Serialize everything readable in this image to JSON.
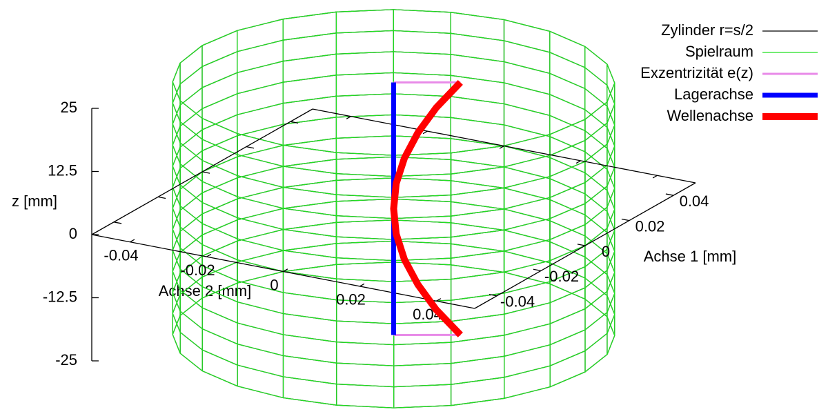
{
  "chart_data": {
    "type": "line3d",
    "xlabel": "Achse 1 [mm]",
    "ylabel": "Achse 2 [mm]",
    "zlabel": "z [mm]",
    "xlim": [
      -0.05,
      0.05
    ],
    "ylim": [
      -0.05,
      0.05
    ],
    "zlim": [
      -25,
      25
    ],
    "xticks": [
      -0.04,
      -0.02,
      0,
      0.02,
      0.04
    ],
    "yticks": [
      -0.04,
      -0.02,
      0,
      0.02,
      0.04
    ],
    "zticks": [
      -25,
      -12.5,
      0,
      12.5,
      25
    ],
    "legend": "top-right",
    "series": [
      {
        "name": "Zylinder r=s/2",
        "color": "#000000",
        "kind": "cylinder",
        "radius": 0.05,
        "zrange": [
          -25,
          25
        ]
      },
      {
        "name": "Spielraum",
        "color": "#22e022",
        "kind": "cylinder",
        "radius": 0.05,
        "zrange": [
          -25,
          25
        ]
      },
      {
        "name": "Exzentrizität e(z)",
        "color": "#e88ae8",
        "kind": "line",
        "x": [
          0,
          0.0077,
          null,
          0,
          0.0077
        ],
        "y": [
          0,
          0.013,
          null,
          0,
          0.013
        ],
        "z": [
          25,
          25,
          null,
          -25,
          -25
        ]
      },
      {
        "name": "Lagerachse",
        "color": "#0000ff",
        "kind": "line",
        "x": [
          0,
          0
        ],
        "y": [
          0,
          0
        ],
        "z": [
          -25,
          25
        ]
      },
      {
        "name": "Wellenachse",
        "color": "#ff0000",
        "kind": "line",
        "x": [
          0.0077,
          0.0049,
          0.0028,
          0.0012,
          0.0003,
          0,
          0.0003,
          0.0012,
          0.0028,
          0.0049,
          0.0077
        ],
        "y": [
          0.013,
          0.0083,
          0.0047,
          0.0021,
          0.0005,
          0,
          0.0005,
          0.0021,
          0.0047,
          0.0083,
          0.013
        ],
        "z": [
          -25,
          -20,
          -15,
          -10,
          -5,
          0,
          5,
          10,
          15,
          20,
          25
        ]
      }
    ]
  }
}
